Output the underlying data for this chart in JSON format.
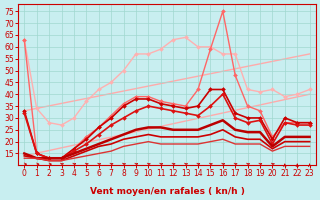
{
  "xlabel": "Vent moyen/en rafales ( kn/h )",
  "xlim": [
    -0.5,
    23.5
  ],
  "ylim": [
    10,
    78
  ],
  "yticks": [
    15,
    20,
    25,
    30,
    35,
    40,
    45,
    50,
    55,
    60,
    65,
    70,
    75
  ],
  "xticks": [
    0,
    1,
    2,
    3,
    4,
    5,
    6,
    7,
    8,
    9,
    10,
    11,
    12,
    13,
    14,
    15,
    16,
    17,
    18,
    19,
    20,
    21,
    22,
    23
  ],
  "bg_color": "#c8eef0",
  "grid_color": "#a0d8d0",
  "series": [
    {
      "name": "light_pink_top",
      "x": [
        0,
        1,
        2,
        3,
        4,
        5,
        6,
        7,
        8,
        9,
        10,
        11,
        12,
        13,
        14,
        15,
        16,
        17,
        18,
        19,
        20,
        21,
        22,
        23
      ],
      "y": [
        63,
        34,
        28,
        27,
        30,
        37,
        42,
        45,
        50,
        57,
        57,
        59,
        63,
        64,
        60,
        60,
        57,
        57,
        42,
        41,
        42,
        39,
        40,
        42
      ],
      "color": "#ffb0b0",
      "lw": 1.0,
      "marker": "D",
      "ms": 2.0,
      "zorder": 2
    },
    {
      "name": "bright_pink_peak",
      "x": [
        0,
        1,
        2,
        3,
        4,
        5,
        6,
        7,
        8,
        9,
        10,
        11,
        12,
        13,
        14,
        15,
        16,
        17,
        18,
        19,
        20,
        21,
        22,
        23
      ],
      "y": [
        63,
        15,
        13,
        13,
        17,
        22,
        26,
        31,
        36,
        39,
        39,
        37,
        36,
        35,
        42,
        59,
        75,
        48,
        35,
        33,
        22,
        28,
        28,
        28
      ],
      "color": "#ff6666",
      "lw": 1.0,
      "marker": "D",
      "ms": 2.0,
      "zorder": 3
    },
    {
      "name": "dark_red_main",
      "x": [
        0,
        1,
        2,
        3,
        4,
        5,
        6,
        7,
        8,
        9,
        10,
        11,
        12,
        13,
        14,
        15,
        16,
        17,
        18,
        19,
        20,
        21,
        22,
        23
      ],
      "y": [
        33,
        15,
        13,
        13,
        17,
        21,
        26,
        30,
        35,
        38,
        38,
        36,
        35,
        34,
        35,
        42,
        42,
        32,
        30,
        30,
        21,
        30,
        28,
        28
      ],
      "color": "#cc0000",
      "lw": 1.2,
      "marker": "D",
      "ms": 2.0,
      "zorder": 4
    },
    {
      "name": "dark_red2",
      "x": [
        0,
        1,
        2,
        3,
        4,
        5,
        6,
        7,
        8,
        9,
        10,
        11,
        12,
        13,
        14,
        15,
        16,
        17,
        18,
        19,
        20,
        21,
        22,
        23
      ],
      "y": [
        32,
        15,
        13,
        13,
        16,
        19,
        23,
        27,
        30,
        33,
        35,
        34,
        33,
        32,
        31,
        35,
        40,
        30,
        28,
        29,
        19,
        28,
        27,
        27
      ],
      "color": "#dd1111",
      "lw": 1.2,
      "marker": "D",
      "ms": 2.0,
      "zorder": 4
    },
    {
      "name": "solid_line1",
      "x": [
        0,
        1,
        2,
        3,
        4,
        5,
        6,
        7,
        8,
        9,
        10,
        11,
        12,
        13,
        14,
        15,
        16,
        17,
        18,
        19,
        20,
        21,
        22,
        23
      ],
      "y": [
        15,
        13,
        13,
        13,
        15,
        17,
        19,
        21,
        23,
        25,
        26,
        26,
        25,
        25,
        25,
        27,
        29,
        25,
        24,
        24,
        18,
        22,
        22,
        22
      ],
      "color": "#bb0000",
      "lw": 1.8,
      "marker": null,
      "ms": 0,
      "zorder": 5
    },
    {
      "name": "solid_line2",
      "x": [
        0,
        1,
        2,
        3,
        4,
        5,
        6,
        7,
        8,
        9,
        10,
        11,
        12,
        13,
        14,
        15,
        16,
        17,
        18,
        19,
        20,
        21,
        22,
        23
      ],
      "y": [
        14,
        13,
        12,
        12,
        14,
        16,
        18,
        19,
        21,
        22,
        23,
        22,
        22,
        22,
        22,
        23,
        25,
        22,
        21,
        21,
        17,
        20,
        20,
        20
      ],
      "color": "#cc0000",
      "lw": 1.2,
      "marker": null,
      "ms": 0,
      "zorder": 5
    },
    {
      "name": "solid_line3",
      "x": [
        0,
        1,
        2,
        3,
        4,
        5,
        6,
        7,
        8,
        9,
        10,
        11,
        12,
        13,
        14,
        15,
        16,
        17,
        18,
        19,
        20,
        21,
        22,
        23
      ],
      "y": [
        13,
        13,
        12,
        12,
        13,
        14,
        15,
        16,
        18,
        19,
        20,
        19,
        19,
        19,
        19,
        20,
        21,
        19,
        19,
        19,
        16,
        18,
        18,
        18
      ],
      "color": "#dd3333",
      "lw": 1.0,
      "marker": null,
      "ms": 0,
      "zorder": 5
    },
    {
      "name": "diag_line1",
      "x": [
        0,
        23
      ],
      "y": [
        33,
        57
      ],
      "color": "#ffaaaa",
      "lw": 1.0,
      "marker": null,
      "ms": 0,
      "zorder": 1
    },
    {
      "name": "diag_line2",
      "x": [
        0,
        23
      ],
      "y": [
        14,
        40
      ],
      "color": "#ffaaaa",
      "lw": 1.0,
      "marker": null,
      "ms": 0,
      "zorder": 1
    }
  ],
  "wind_dirs": [
    2,
    2,
    2,
    3,
    3,
    3,
    3,
    3,
    3,
    3,
    3,
    3,
    3,
    3,
    3,
    3,
    3,
    3,
    3,
    3,
    3,
    4,
    4,
    4
  ],
  "tick_fontsize": 5.5,
  "label_fontsize": 6.5
}
